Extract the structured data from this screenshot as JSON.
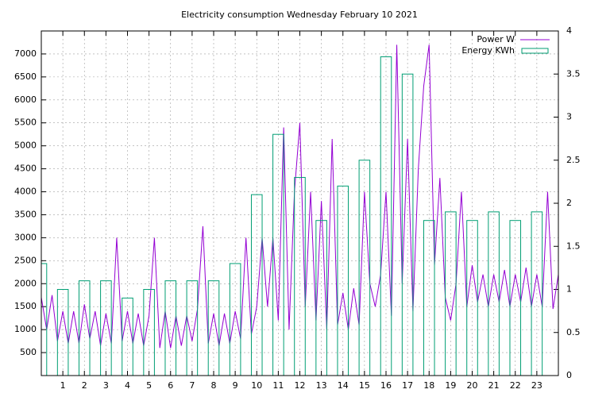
{
  "chart_data": {
    "type": "line",
    "title": "Electricity consumption Wednesday February 10 2021",
    "xlim": [
      0,
      24
    ],
    "xticks": [
      1,
      2,
      3,
      4,
      5,
      6,
      7,
      8,
      9,
      10,
      11,
      12,
      13,
      14,
      15,
      16,
      17,
      18,
      19,
      20,
      21,
      22,
      23
    ],
    "ylim": [
      0,
      7500
    ],
    "yticks": [
      500,
      1000,
      1500,
      2000,
      2500,
      3000,
      3500,
      4000,
      4500,
      5000,
      5500,
      6000,
      6500,
      7000
    ],
    "y2lim": [
      0,
      4
    ],
    "y2ticks": [
      0,
      0.5,
      1,
      1.5,
      2,
      2.5,
      3,
      3.5,
      4
    ],
    "grid": true,
    "legend": "top-right",
    "series": [
      {
        "name": "Power W",
        "color": "#9400d3",
        "style": "line",
        "x": [
          0,
          0.25,
          0.5,
          0.75,
          1,
          1.25,
          1.5,
          1.75,
          2,
          2.25,
          2.5,
          2.75,
          3,
          3.25,
          3.5,
          3.75,
          4,
          4.25,
          4.5,
          4.75,
          5,
          5.25,
          5.5,
          5.75,
          6,
          6.25,
          6.5,
          6.75,
          7,
          7.25,
          7.5,
          7.75,
          8,
          8.25,
          8.5,
          8.75,
          9,
          9.25,
          9.5,
          9.75,
          10,
          10.25,
          10.5,
          10.75,
          11,
          11.25,
          11.5,
          11.75,
          12,
          12.25,
          12.5,
          12.75,
          13,
          13.25,
          13.5,
          13.75,
          14,
          14.25,
          14.5,
          14.75,
          15,
          15.25,
          15.5,
          15.75,
          16,
          16.25,
          16.5,
          16.75,
          17,
          17.25,
          17.5,
          17.75,
          18,
          18.25,
          18.5,
          18.75,
          19,
          19.25,
          19.5,
          19.75,
          20,
          20.25,
          20.5,
          20.75,
          21,
          21.25,
          21.5,
          21.75,
          22,
          22.25,
          22.5,
          22.75,
          23,
          23.25,
          23.5,
          23.75,
          24
        ],
        "values": [
          1700,
          1000,
          1750,
          750,
          1400,
          700,
          1400,
          700,
          1550,
          800,
          1400,
          650,
          1350,
          700,
          3000,
          750,
          1400,
          700,
          1350,
          650,
          1300,
          3000,
          600,
          1400,
          600,
          1300,
          650,
          1300,
          750,
          1450,
          3250,
          700,
          1350,
          650,
          1350,
          700,
          1400,
          800,
          3000,
          900,
          1500,
          3000,
          1500,
          3000,
          1200,
          5400,
          1000,
          4000,
          5500,
          1500,
          4000,
          1200,
          3800,
          1000,
          5150,
          1100,
          1800,
          1000,
          1900,
          1100,
          4000,
          2000,
          1500,
          2200,
          4000,
          1300,
          7200,
          2000,
          5150,
          1400,
          4500,
          6300,
          7200,
          2400,
          4300,
          1700,
          1200,
          2000,
          4000,
          1500,
          2400,
          1600,
          2200,
          1500,
          2200,
          1600,
          2300,
          1500,
          2200,
          1600,
          2350,
          1500,
          2200,
          1500,
          4000,
          1450,
          2200
        ]
      },
      {
        "name": "Energy KWh",
        "color": "#009e73",
        "style": "boxes",
        "axis": "y2",
        "x": [
          0,
          1,
          2,
          3,
          4,
          5,
          6,
          7,
          8,
          9,
          10,
          11,
          12,
          13,
          14,
          15,
          16,
          17,
          18,
          19,
          20,
          21,
          22,
          23
        ],
        "values": [
          1.3,
          1.0,
          1.1,
          1.1,
          0.9,
          1.0,
          1.1,
          1.1,
          1.1,
          1.3,
          2.1,
          2.8,
          2.3,
          1.8,
          2.2,
          2.5,
          3.7,
          3.5,
          1.8,
          1.9,
          1.8,
          1.9,
          1.8,
          1.9
        ]
      }
    ]
  }
}
